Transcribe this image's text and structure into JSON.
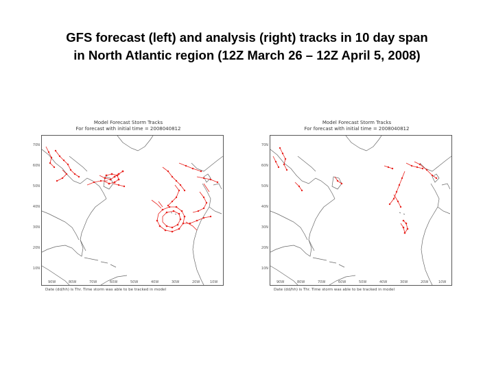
{
  "title": {
    "line1": "GFS forecast (left) and analysis (right) tracks in 10 day span",
    "line2": "in North Atlantic region (12Z March 26 – 12Z April 5, 2008)"
  },
  "colors": {
    "track": "#e8211c",
    "coast": "#666666",
    "background": "#ffffff"
  },
  "panels": [
    {
      "id": "left",
      "header_line1": "Model Forecast Storm Tracks",
      "header_line2": "For forecast with initial time = 2008040812",
      "footer": "Date (dd/hh) is Thr. Time storm was able to be tracked in model",
      "lat_labels": [
        "70N",
        "60N",
        "50N",
        "40N",
        "30N",
        "20N",
        "10N"
      ],
      "lon_labels": [
        "90W",
        "80W",
        "70W",
        "60W",
        "50W",
        "40W",
        "30W",
        "20W",
        "10W"
      ]
    },
    {
      "id": "right",
      "header_line1": "Model Forecast Storm Tracks",
      "header_line2": "For forecast with initial time = 2008040812",
      "footer": "Date (dd/hh) is Thr. Time storm was able to be tracked in model",
      "lat_labels": [
        "70N",
        "60N",
        "50N",
        "40N",
        "30N",
        "20N",
        "10N"
      ],
      "lon_labels": [
        "90W",
        "80W",
        "70W",
        "60W",
        "50W",
        "40W",
        "30W",
        "20W",
        "10W"
      ]
    }
  ]
}
